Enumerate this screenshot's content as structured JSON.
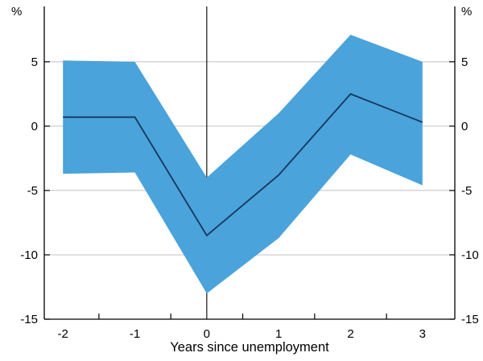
{
  "figure": {
    "background": "#ffffff",
    "band_color": "#4aa3da",
    "line_color": "#17375c",
    "grid_color": "#c0c0c0",
    "axis_color": "#000000"
  },
  "chart_data": {
    "type": "line",
    "title": "",
    "xlabel": "Years since unemployment",
    "unit_left": "%",
    "unit_right": "%",
    "x": [
      -2,
      -1,
      0,
      1,
      2,
      3
    ],
    "series": [
      {
        "name": "central-estimate",
        "values": [
          0.7,
          0.7,
          -8.5,
          -3.8,
          2.5,
          0.3
        ]
      },
      {
        "name": "band-upper",
        "values": [
          5.1,
          5.0,
          -4.0,
          1.0,
          7.1,
          5.0
        ]
      },
      {
        "name": "band-lower",
        "values": [
          -3.7,
          -3.6,
          -13.0,
          -8.7,
          -2.2,
          -4.6
        ]
      }
    ],
    "ylim": [
      -15,
      9.3
    ],
    "xlim": [
      -2.26,
      3.45
    ],
    "yticks": [
      5,
      0,
      -5,
      -10,
      -15
    ],
    "ytick_labels": [
      "5",
      "0",
      "-5",
      "-10",
      "-15"
    ],
    "xticks_labeled": [
      -2,
      -1,
      0,
      1,
      2,
      3
    ],
    "xtick_labels": [
      "-2",
      "-1",
      "0",
      "1",
      "2",
      "3"
    ],
    "xticks_minor": [
      -1.5,
      -0.5,
      0.5,
      1.5,
      2.5
    ],
    "gridlines": [
      5,
      0,
      -5,
      -10
    ],
    "zero_vline_x": 0,
    "grid": "horizontal",
    "legend_position": "none"
  }
}
